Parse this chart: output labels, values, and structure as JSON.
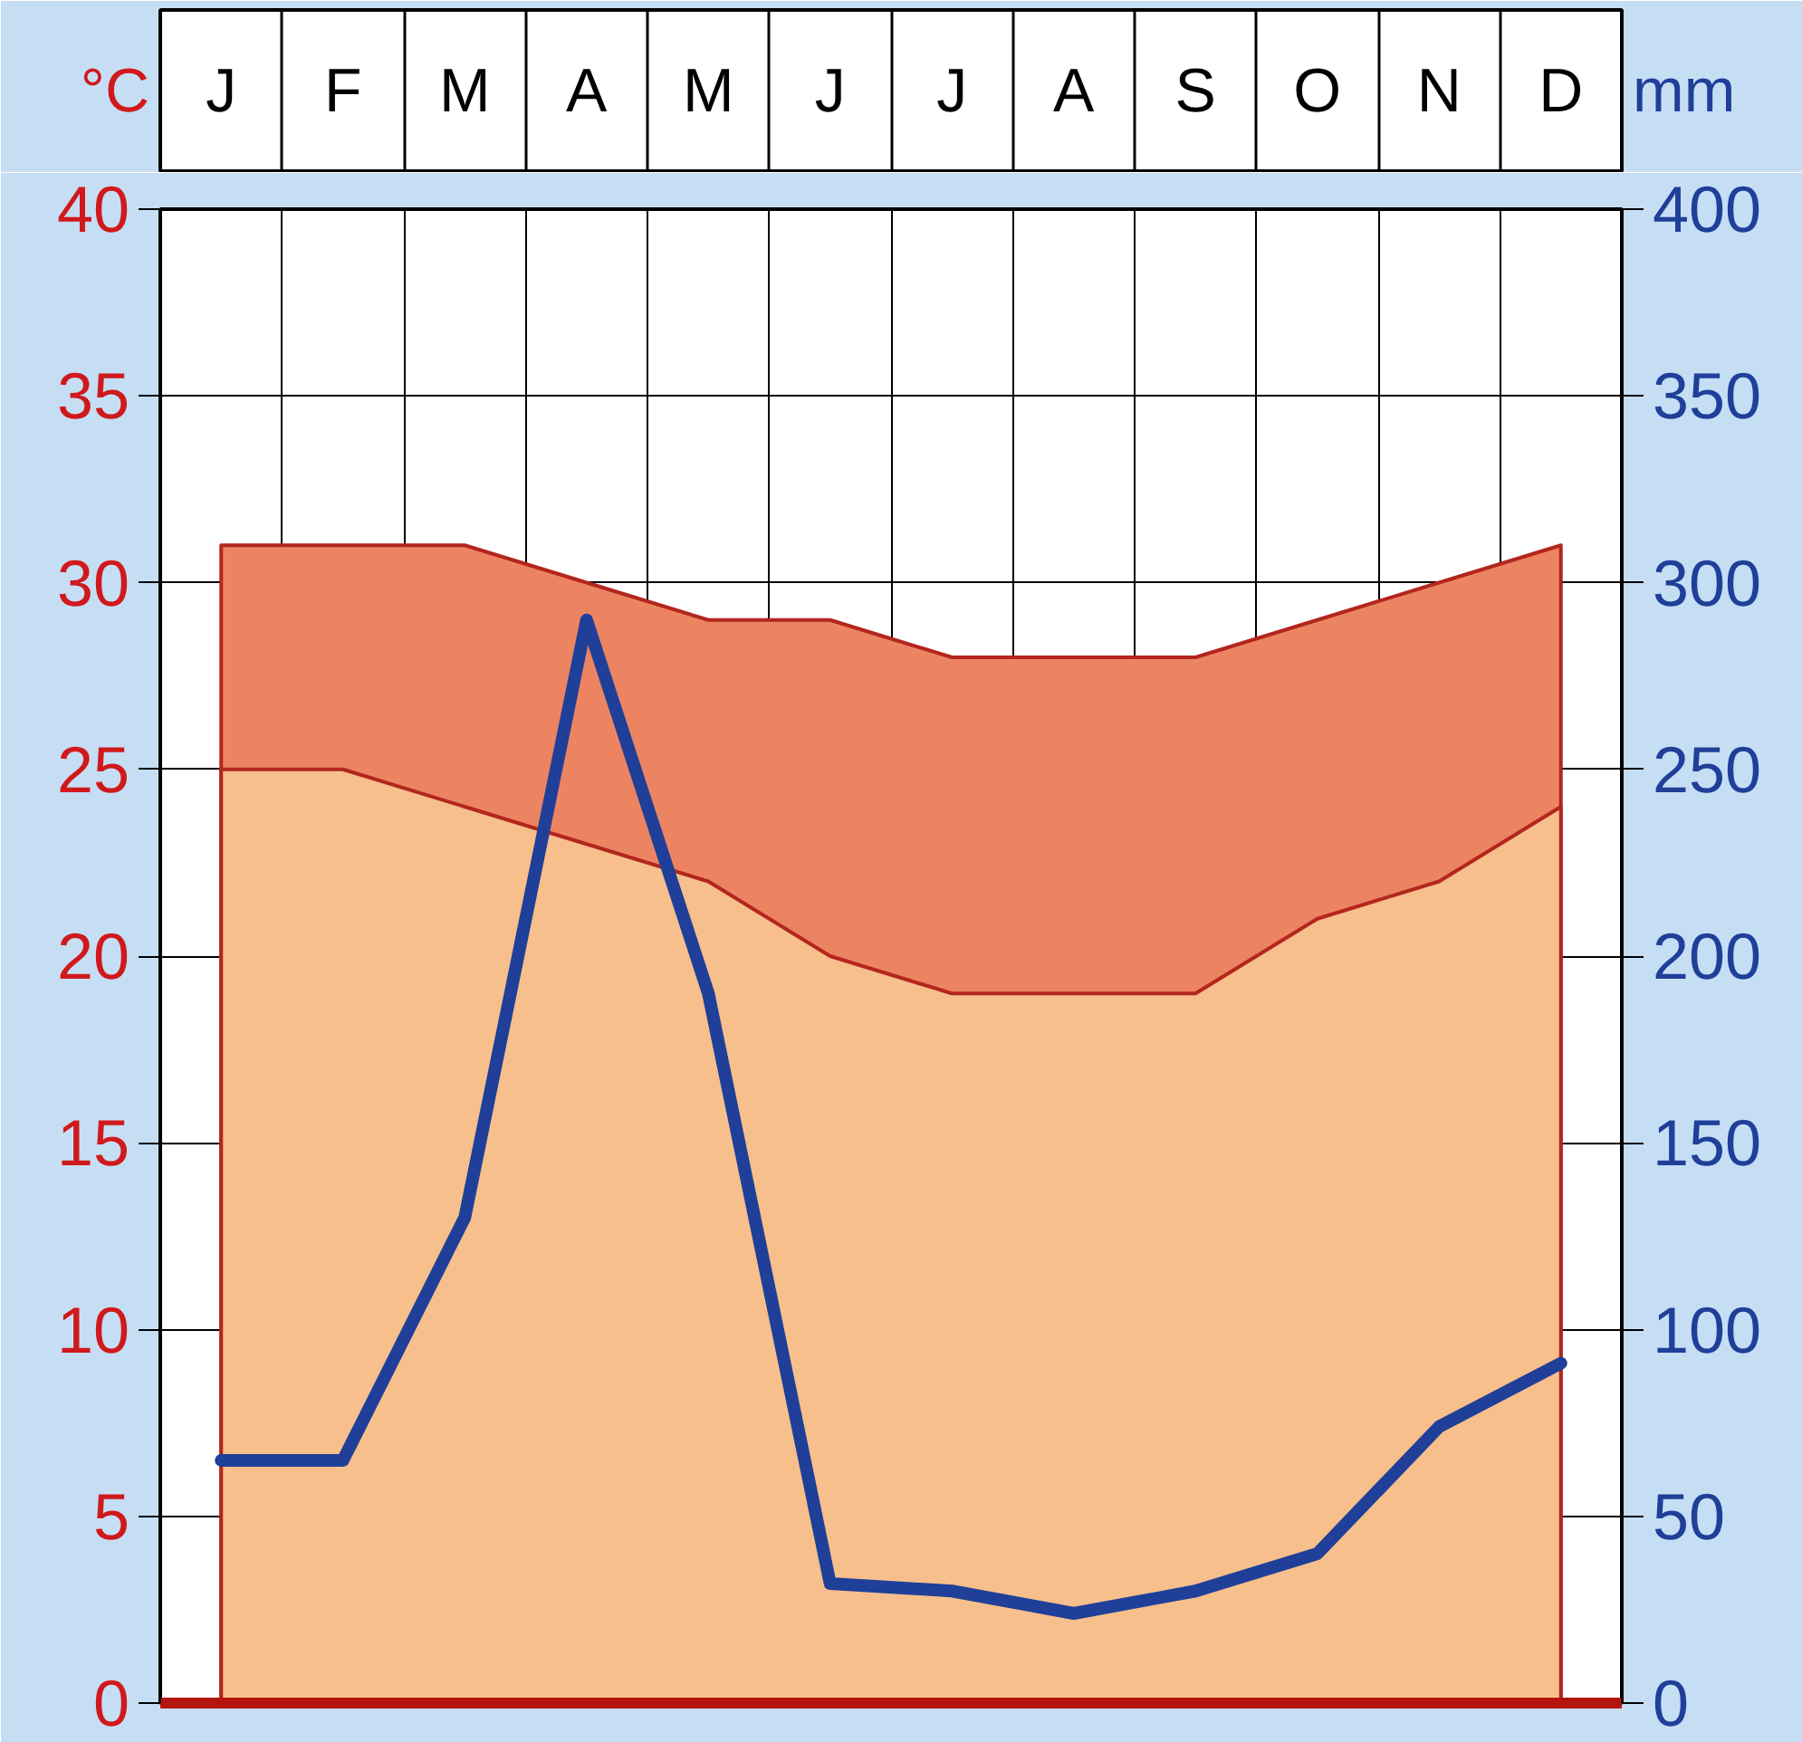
{
  "chart_data": {
    "type": "area",
    "ylabel": "°C",
    "y2label": "mm",
    "categories": [
      "J",
      "F",
      "M",
      "A",
      "M",
      "J",
      "J",
      "A",
      "S",
      "O",
      "N",
      "D"
    ],
    "series": [
      {
        "type": "area",
        "color": "#ec8462",
        "values": [
          31,
          31,
          31,
          30,
          29,
          29,
          28,
          28,
          28,
          29,
          30,
          31
        ]
      },
      {
        "type": "area",
        "color": "#f6bf8c",
        "values": [
          25,
          25,
          24,
          23,
          22,
          20,
          19,
          19,
          19,
          21,
          22,
          24
        ]
      },
      {
        "type": "line",
        "axis": "y2",
        "color": "#1f3f99",
        "values": [
          65,
          65,
          130,
          290,
          190,
          32,
          30,
          24,
          30,
          40,
          74,
          91
        ]
      }
    ],
    "ylim": [
      0,
      40
    ],
    "yticks": [
      0,
      5,
      10,
      15,
      20,
      25,
      30,
      35,
      40
    ],
    "y2lim": [
      0,
      400
    ],
    "y2ticks": [
      0,
      50,
      100,
      150,
      200,
      250,
      300,
      350,
      400
    ],
    "grid": true
  }
}
